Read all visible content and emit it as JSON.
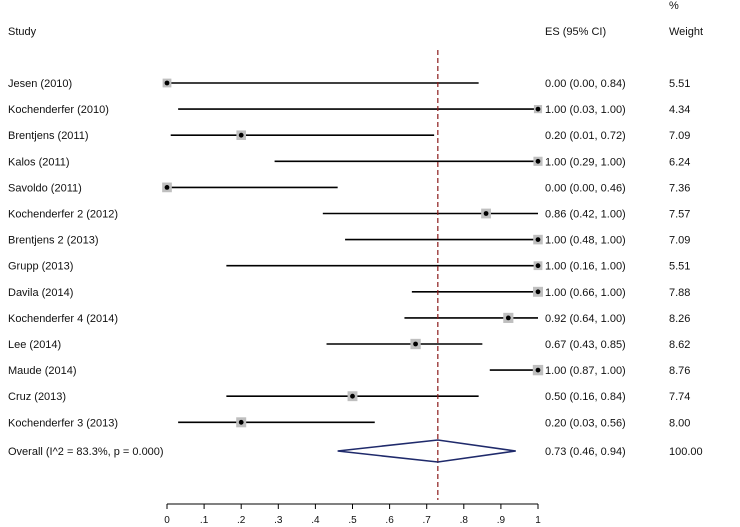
{
  "headers": {
    "study": "Study",
    "es": "ES (95% CI)",
    "pct": "%",
    "weight": "Weight"
  },
  "studies": [
    {
      "name": "Jesen (2010)",
      "es_text": "0.00 (0.00, 0.84)",
      "weight": "5.51"
    },
    {
      "name": "Kochenderfer (2010)",
      "es_text": "1.00 (0.03, 1.00)",
      "weight": "4.34"
    },
    {
      "name": "Brentjens (2011)",
      "es_text": "0.20 (0.01, 0.72)",
      "weight": "7.09"
    },
    {
      "name": "Kalos (2011)",
      "es_text": "1.00 (0.29, 1.00)",
      "weight": "6.24"
    },
    {
      "name": "Savoldo (2011)",
      "es_text": "0.00 (0.00, 0.46)",
      "weight": "7.36"
    },
    {
      "name": "Kochenderfer 2 (2012)",
      "es_text": "0.86 (0.42, 1.00)",
      "weight": "7.57"
    },
    {
      "name": "Brentjens 2 (2013)",
      "es_text": "1.00 (0.48, 1.00)",
      "weight": "7.09"
    },
    {
      "name": "Grupp (2013)",
      "es_text": "1.00 (0.16, 1.00)",
      "weight": "5.51"
    },
    {
      "name": "Davila (2014)",
      "es_text": "1.00 (0.66, 1.00)",
      "weight": "7.88"
    },
    {
      "name": "Kochenderfer 4 (2014)",
      "es_text": "0.92 (0.64, 1.00)",
      "weight": "8.26"
    },
    {
      "name": "Lee (2014)",
      "es_text": "0.67 (0.43, 0.85)",
      "weight": "8.62"
    },
    {
      "name": "Maude (2014)",
      "es_text": "1.00 (0.87, 1.00)",
      "weight": "8.76"
    },
    {
      "name": "Cruz (2013)",
      "es_text": "0.50 (0.16, 0.84)",
      "weight": "7.74"
    },
    {
      "name": "Kochenderfer 3 (2013)",
      "es_text": "0.20 (0.03, 0.56)",
      "weight": "8.00"
    }
  ],
  "overall": {
    "label": "Overall  (I^2 = 83.3%, p = 0.000)",
    "es_text": "0.73 (0.46, 0.94)",
    "weight": "100.00"
  },
  "chart_data": {
    "type": "forest",
    "title": "",
    "xlabel": "",
    "xlim": [
      0,
      1
    ],
    "xticks": [
      0,
      0.1,
      0.2,
      0.3,
      0.4,
      0.5,
      0.6,
      0.7,
      0.8,
      0.9,
      1.0
    ],
    "xtick_labels": [
      "0",
      ".1",
      ".2",
      ".3",
      ".4",
      ".5",
      ".6",
      ".7",
      ".8",
      ".9",
      "1"
    ],
    "reference_line": 0.73,
    "points": [
      {
        "es": 0.0,
        "lo": 0.0,
        "hi": 0.84,
        "weight": 5.51
      },
      {
        "es": 1.0,
        "lo": 0.03,
        "hi": 1.0,
        "weight": 4.34
      },
      {
        "es": 0.2,
        "lo": 0.01,
        "hi": 0.72,
        "weight": 7.09
      },
      {
        "es": 1.0,
        "lo": 0.29,
        "hi": 1.0,
        "weight": 6.24
      },
      {
        "es": 0.0,
        "lo": 0.0,
        "hi": 0.46,
        "weight": 7.36
      },
      {
        "es": 0.86,
        "lo": 0.42,
        "hi": 1.0,
        "weight": 7.57
      },
      {
        "es": 1.0,
        "lo": 0.48,
        "hi": 1.0,
        "weight": 7.09
      },
      {
        "es": 1.0,
        "lo": 0.16,
        "hi": 1.0,
        "weight": 5.51
      },
      {
        "es": 1.0,
        "lo": 0.66,
        "hi": 1.0,
        "weight": 7.88
      },
      {
        "es": 0.92,
        "lo": 0.64,
        "hi": 1.0,
        "weight": 8.26
      },
      {
        "es": 0.67,
        "lo": 0.43,
        "hi": 0.85,
        "weight": 8.62
      },
      {
        "es": 1.0,
        "lo": 0.87,
        "hi": 1.0,
        "weight": 8.76
      },
      {
        "es": 0.5,
        "lo": 0.16,
        "hi": 0.84,
        "weight": 7.74
      },
      {
        "es": 0.2,
        "lo": 0.03,
        "hi": 0.56,
        "weight": 8.0
      }
    ],
    "overall": {
      "es": 0.73,
      "lo": 0.46,
      "hi": 0.94
    },
    "colors": {
      "ci_line": "#000000",
      "weight_box": "#bfbfbf",
      "ref_line": "#8b1a1a",
      "diamond": "#1f2a6b"
    }
  }
}
